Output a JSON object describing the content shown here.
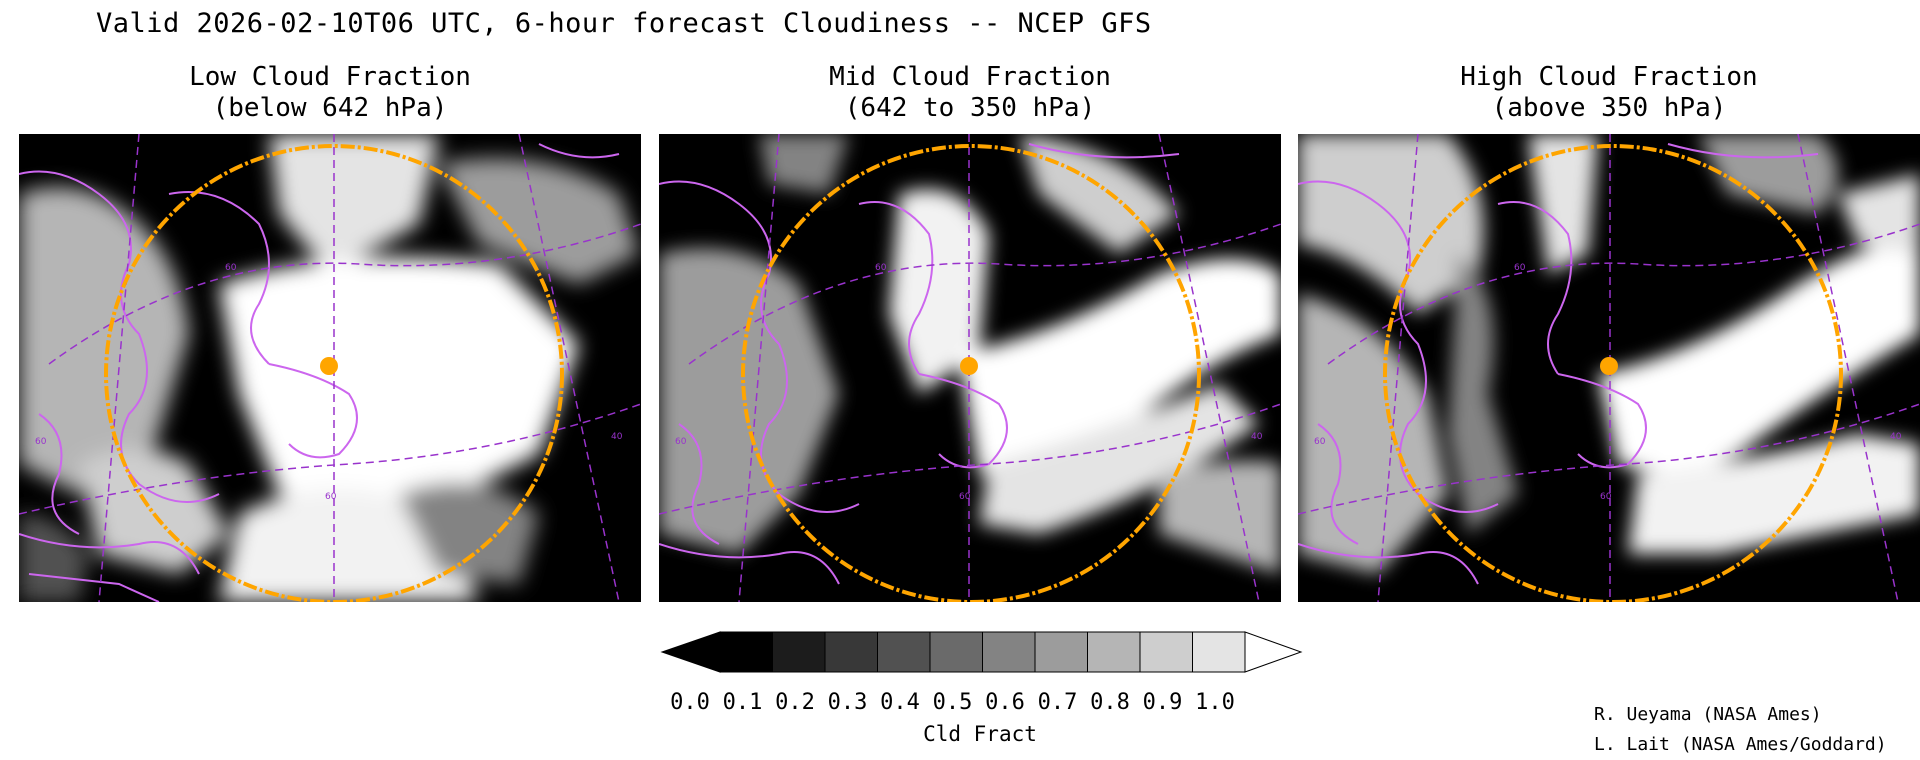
{
  "header": {
    "title": "Valid 2026-02-10T06 UTC, 6-hour forecast Cloudiness -- NCEP GFS"
  },
  "panels": [
    {
      "line1": "Low Cloud Fraction",
      "line2": "(below 642 hPa)",
      "grid_labels": [
        "60",
        "60",
        "60",
        "40"
      ]
    },
    {
      "line1": "Mid Cloud Fraction",
      "line2": "(642 to 350 hPa)",
      "grid_labels": [
        "60",
        "60",
        "60",
        "40"
      ]
    },
    {
      "line1": "High Cloud Fraction",
      "line2": "(above 350 hPa)",
      "grid_labels": [
        "60",
        "60",
        "60",
        "40"
      ]
    }
  ],
  "colorbar": {
    "label": "Cld Fract",
    "ticks": [
      "0.0",
      "0.1",
      "0.2",
      "0.3",
      "0.4",
      "0.5",
      "0.6",
      "0.7",
      "0.8",
      "0.9",
      "1.0"
    ],
    "colors": [
      "#000000",
      "#000000",
      "#1c1c1c",
      "#383838",
      "#515151",
      "#6a6a6a",
      "#838383",
      "#9c9c9c",
      "#b5b5b5",
      "#cecece",
      "#e4e4e4",
      "#ffffff"
    ]
  },
  "credits": {
    "line1": "R. Ueyama (NASA Ames)",
    "line2": "L. Lait (NASA Ames/Goddard)"
  },
  "map_style": {
    "coastline_color": "#cc66ee",
    "grid_color": "#9933cc",
    "range_ring_color": "#ffa500",
    "site_marker_color": "#ffa500"
  }
}
